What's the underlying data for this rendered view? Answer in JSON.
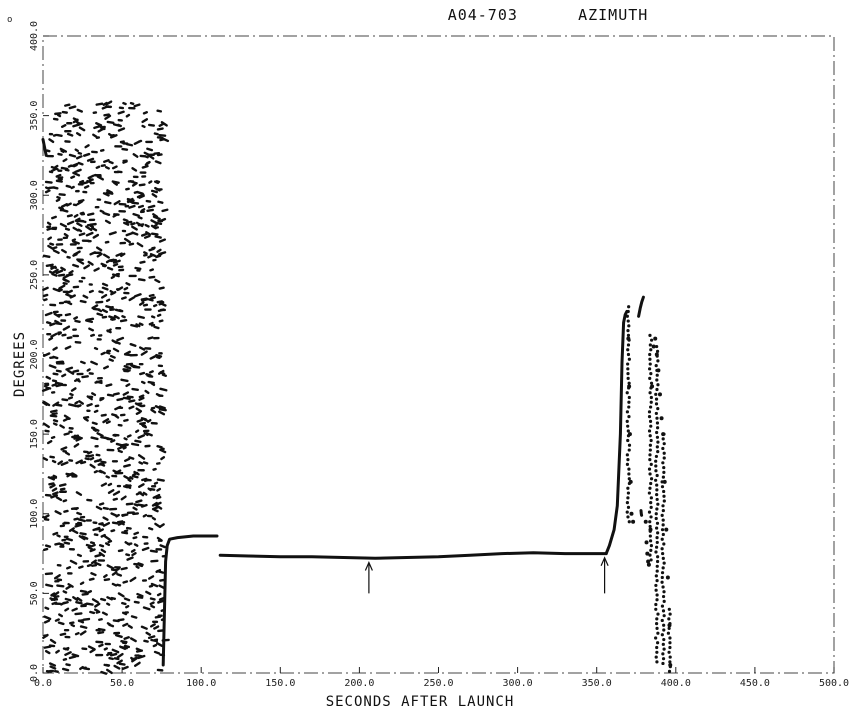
{
  "corner_mark": "o",
  "chart_data": {
    "type": "scatter",
    "title": "A04-703      AZIMUTH",
    "xlabel": "SECONDS AFTER LAUNCH",
    "ylabel": "DEGREES",
    "xlim": [
      0,
      500
    ],
    "ylim": [
      0,
      400
    ],
    "x_tick_labels": [
      "0.0",
      "50.0",
      "100.0",
      "150.0",
      "200.0",
      "250.0",
      "300.0",
      "350.0",
      "400.0",
      "450.0",
      "500.0"
    ],
    "y_tick_labels": [
      "0.0",
      "50.0",
      "100.0",
      "150.0",
      "200.0",
      "250.0",
      "300.0",
      "350.0",
      "400.0"
    ],
    "x_ticks": [
      0,
      50,
      100,
      150,
      200,
      250,
      300,
      350,
      400,
      450,
      500
    ],
    "y_ticks": [
      0,
      50,
      100,
      150,
      200,
      250,
      300,
      350,
      400
    ],
    "grid": false,
    "line_color": "#111111",
    "noise_region": {
      "x_range": [
        0,
        76
      ],
      "y_range": [
        0,
        358
      ]
    },
    "series": [
      {
        "style": "line",
        "x": [
          0,
          1,
          2
        ],
        "y": [
          335,
          330,
          325
        ]
      },
      {
        "style": "line",
        "x": [
          76,
          76.8,
          77.5,
          78.5,
          80,
          85,
          95,
          110
        ],
        "y": [
          5,
          40,
          70,
          80,
          84,
          85,
          86,
          86
        ]
      },
      {
        "style": "line",
        "x": [
          112,
          130,
          150,
          170,
          190,
          210,
          230,
          250,
          270,
          290,
          310,
          330,
          350,
          356
        ],
        "y": [
          74,
          73.5,
          73,
          73,
          72.5,
          72,
          72.5,
          73,
          74,
          75,
          75.5,
          75,
          75,
          75
        ]
      },
      {
        "style": "line",
        "x": [
          356,
          358,
          361,
          363,
          365,
          366,
          367,
          368,
          369
        ],
        "y": [
          75,
          80,
          90,
          105,
          150,
          195,
          220,
          225,
          227
        ]
      },
      {
        "style": "line",
        "x": [
          376.5,
          377.5,
          378.5,
          379.5
        ],
        "y": [
          224,
          229,
          233,
          236
        ]
      },
      {
        "style": "line",
        "x": [
          378,
          378.2,
          378.4
        ],
        "y": [
          102,
          100,
          99
        ]
      },
      {
        "style": "scatter",
        "x": [
          370,
          370.5,
          371,
          371.5,
          372,
          373,
          381,
          381.5,
          382,
          382.5,
          383,
          384,
          385,
          386,
          387,
          388,
          389,
          390,
          391,
          392,
          393,
          394,
          395,
          396,
          396.5
        ],
        "y": [
          210,
          180,
          150,
          120,
          100,
          95,
          95,
          82,
          75,
          70,
          68,
          90,
          180,
          205,
          210,
          200,
          190,
          175,
          160,
          150,
          120,
          90,
          60,
          30,
          5
        ]
      }
    ],
    "annotations": [
      {
        "type": "arrow",
        "x": 206,
        "y_tip": 70,
        "y_tail": 50
      },
      {
        "type": "arrow",
        "x": 355,
        "y_tip": 73,
        "y_tail": 50
      }
    ]
  }
}
